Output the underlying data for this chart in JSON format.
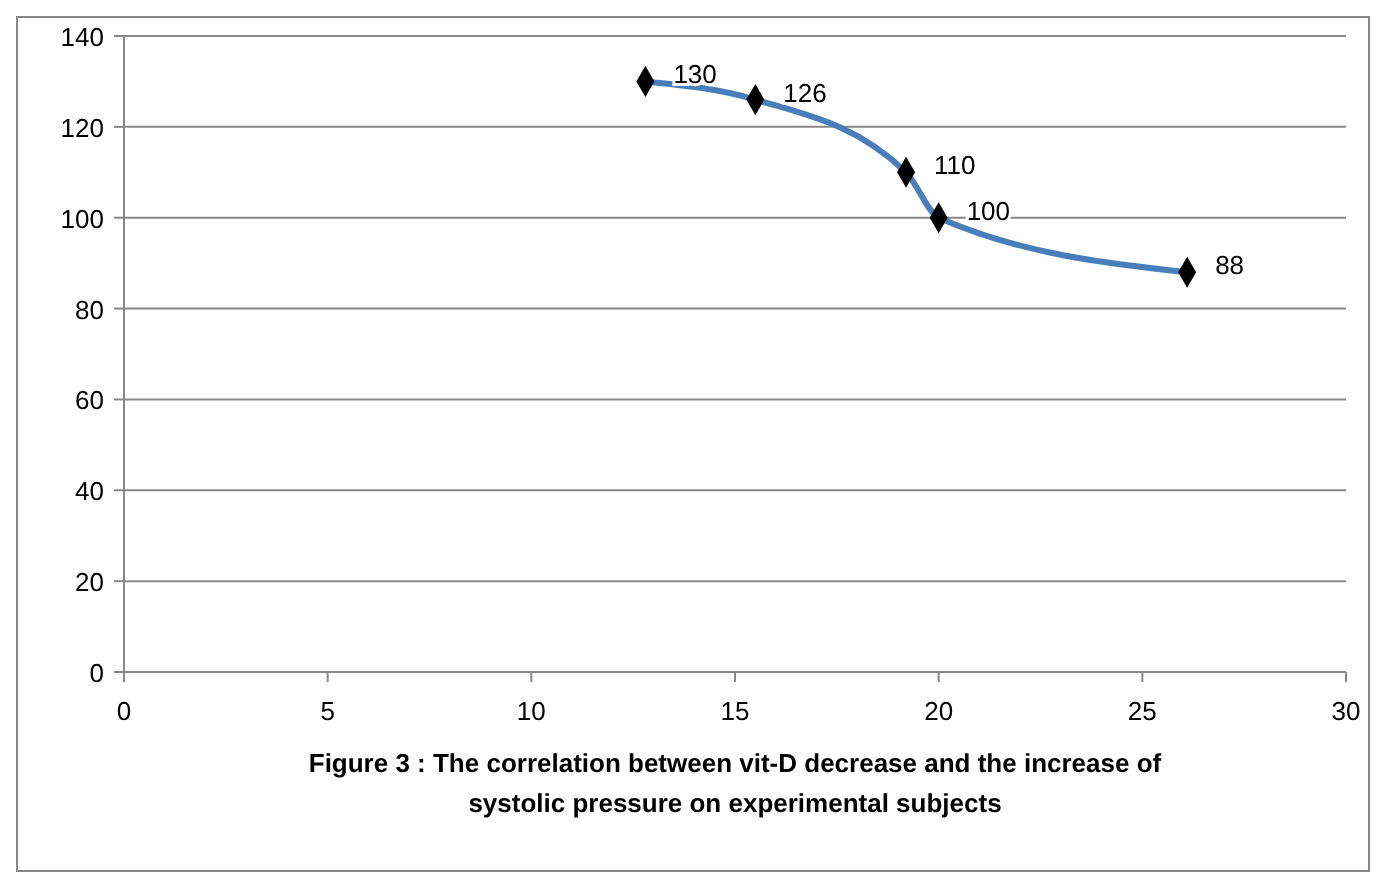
{
  "chart_data": {
    "type": "line",
    "title": "Figure 3 : The correlation between vit-D decrease and the increase of systolic pressure on experimental subjects",
    "x": [
      12.8,
      15.5,
      19.2,
      20,
      26.1
    ],
    "series": [
      {
        "color": "#4a7ebb",
        "values": [
          130,
          126,
          110,
          100,
          88
        ]
      }
    ],
    "xlim": [
      0,
      30
    ],
    "xticks": [
      0,
      5,
      10,
      15,
      20,
      25,
      30
    ],
    "ylim": [
      0,
      140
    ],
    "yticks": [
      0,
      20,
      40,
      60,
      80,
      100,
      120,
      140
    ],
    "grid": "y",
    "marker": "diamond",
    "data_labels": true
  }
}
